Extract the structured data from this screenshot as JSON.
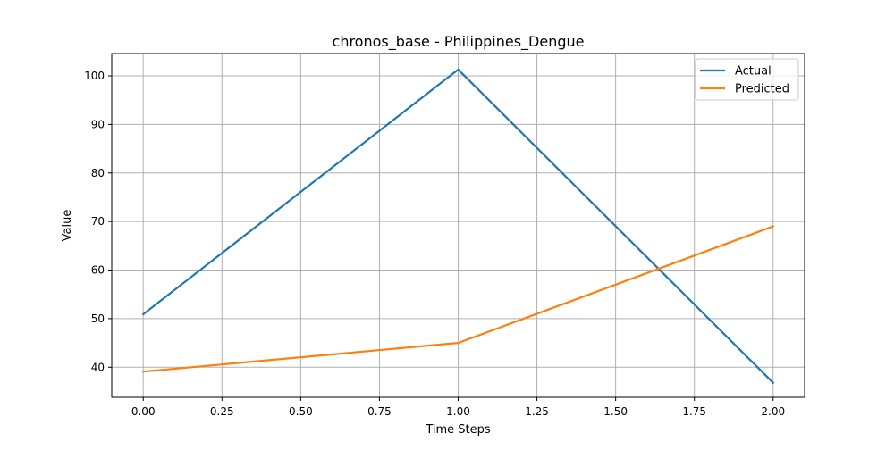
{
  "chart_data": {
    "type": "line",
    "title": "chronos_base - Philippines_Dengue",
    "xlabel": "Time Steps",
    "ylabel": "Value",
    "x": [
      0,
      1,
      2
    ],
    "xlim": [
      -0.1,
      2.1
    ],
    "ylim": [
      33.8,
      104.6
    ],
    "xticks": [
      0.0,
      0.25,
      0.5,
      0.75,
      1.0,
      1.25,
      1.5,
      1.75,
      2.0
    ],
    "xtick_labels": [
      "0.00",
      "0.25",
      "0.50",
      "0.75",
      "1.00",
      "1.25",
      "1.50",
      "1.75",
      "2.00"
    ],
    "yticks": [
      40,
      50,
      60,
      70,
      80,
      90,
      100
    ],
    "ytick_labels": [
      "40",
      "50",
      "60",
      "70",
      "80",
      "90",
      "100"
    ],
    "grid": true,
    "legend_position": "top-right",
    "series": [
      {
        "name": "Actual",
        "color": "#1f77b4",
        "values": [
          50.9,
          101.3,
          36.8
        ]
      },
      {
        "name": "Predicted",
        "color": "#ff7f0e",
        "values": [
          39.1,
          45.0,
          69.0
        ]
      }
    ]
  }
}
